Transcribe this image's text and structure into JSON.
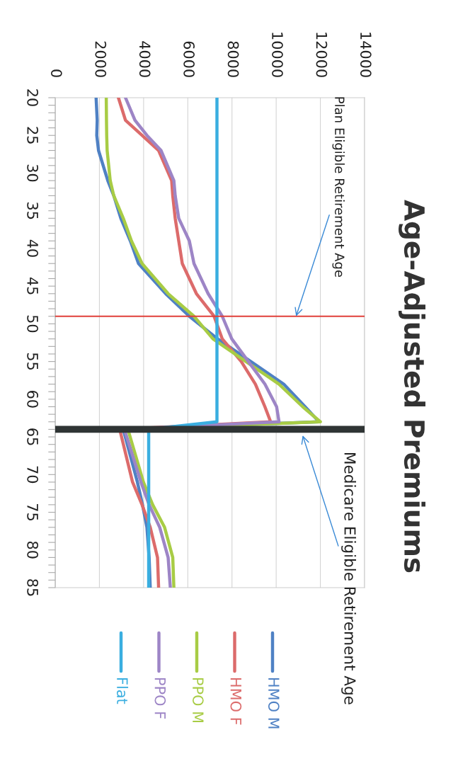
{
  "chart_data": {
    "type": "line",
    "title": "Age-Adjusted Premiums",
    "xlim": [
      0,
      14000
    ],
    "xticks": [
      0,
      2000,
      4000,
      6000,
      8000,
      10000,
      12000,
      14000
    ],
    "ylim": [
      85,
      20
    ],
    "yticks": [
      20,
      {
        "value": 21,
        "label": null
      },
      {
        "value": 22,
        "label": null
      },
      {
        "value": 23,
        "label": null
      },
      {
        "value": 24,
        "label": null
      },
      25,
      {
        "value": 26,
        "label": null
      },
      {
        "value": 27,
        "label": null
      },
      {
        "value": 28,
        "label": null
      },
      {
        "value": 29,
        "label": null
      },
      30,
      {
        "value": 31,
        "label": null
      },
      {
        "value": 32,
        "label": null
      },
      {
        "value": 33,
        "label": null
      },
      {
        "value": 34,
        "label": null
      },
      35,
      {
        "value": 36,
        "label": null
      },
      {
        "value": 37,
        "label": null
      },
      {
        "value": 38,
        "label": null
      },
      {
        "value": 39,
        "label": null
      },
      40,
      {
        "value": 41,
        "label": null
      },
      {
        "value": 42,
        "label": null
      },
      {
        "value": 43,
        "label": null
      },
      {
        "value": 44,
        "label": null
      },
      45,
      {
        "value": 46,
        "label": null
      },
      {
        "value": 47,
        "label": null
      },
      {
        "value": 48,
        "label": null
      },
      {
        "value": 49,
        "label": null
      },
      50,
      {
        "value": 51,
        "label": null
      },
      {
        "value": 52,
        "label": null
      },
      {
        "value": 53,
        "label": null
      },
      {
        "value": 54,
        "label": null
      },
      55,
      {
        "value": 56,
        "label": null
      },
      {
        "value": 57,
        "label": null
      },
      {
        "value": 58,
        "label": null
      },
      {
        "value": 59,
        "label": null
      },
      60,
      {
        "value": 61,
        "label": null
      },
      {
        "value": 62,
        "label": null
      },
      {
        "value": 63,
        "label": null
      },
      {
        "value": 64,
        "label": null
      },
      65,
      {
        "value": 66,
        "label": null
      },
      {
        "value": 67,
        "label": null
      },
      {
        "value": 68,
        "label": null
      },
      {
        "value": 69,
        "label": null
      },
      70,
      {
        "value": 71,
        "label": null
      },
      {
        "value": 72,
        "label": null
      },
      {
        "value": 73,
        "label": null
      },
      {
        "value": 74,
        "label": null
      },
      75,
      {
        "value": 76,
        "label": null
      },
      {
        "value": 77,
        "label": null
      },
      {
        "value": 78,
        "label": null
      },
      {
        "value": 79,
        "label": null
      },
      80,
      {
        "value": 81,
        "label": null
      },
      {
        "value": 82,
        "label": null
      },
      {
        "value": 83,
        "label": null
      },
      {
        "value": 84,
        "label": null
      },
      85
    ],
    "grid": "x",
    "legend": "bottom",
    "line_style": "solid",
    "series": [
      {
        "name": "HMO M",
        "color": "#4f81c4",
        "x": [
          1850,
          1900,
          1880,
          1960,
          2380,
          2650,
          2970,
          3400,
          3770,
          5000,
          6070,
          7350,
          8850,
          10340,
          11310,
          11940,
          3080,
          3720,
          3950,
          4150,
          4250,
          4300
        ],
        "values": [
          20,
          23,
          25,
          27,
          31,
          33,
          36,
          39,
          42,
          46,
          49,
          52,
          55,
          58,
          61,
          63,
          64,
          71,
          74,
          77,
          81,
          85
        ]
      },
      {
        "name": "HMO F",
        "color": "#dc6b6b",
        "x": [
          2860,
          3180,
          3930,
          4680,
          5270,
          5320,
          5430,
          5590,
          5750,
          6390,
          7190,
          7560,
          8420,
          9060,
          9490,
          9750,
          2920,
          3500,
          3930,
          4300,
          4630,
          4680
        ],
        "values": [
          20,
          23,
          25,
          27,
          31,
          33,
          36,
          39,
          42,
          46,
          49,
          52,
          55,
          58,
          61,
          63,
          64,
          71,
          74,
          77,
          81,
          85
        ]
      },
      {
        "name": "PPO M",
        "color": "#a8cc45",
        "x": [
          2310,
          2320,
          2330,
          2350,
          2490,
          2650,
          3080,
          3450,
          3930,
          5110,
          6280,
          7140,
          8630,
          10130,
          11200,
          12000,
          3290,
          3990,
          4410,
          4950,
          5320,
          5370
        ],
        "values": [
          20,
          23,
          25,
          27,
          31,
          33,
          36,
          39,
          42,
          46,
          49,
          52,
          55,
          58,
          61,
          63,
          64,
          71,
          74,
          77,
          81,
          85
        ]
      },
      {
        "name": "PPO F",
        "color": "#9d85c6",
        "x": [
          3180,
          3610,
          4150,
          4790,
          5370,
          5430,
          5590,
          6070,
          6280,
          6920,
          7560,
          7990,
          8740,
          9490,
          10020,
          10130,
          3130,
          3880,
          4250,
          4730,
          5110,
          5210
        ],
        "values": [
          20,
          23,
          25,
          27,
          31,
          33,
          36,
          39,
          42,
          46,
          49,
          52,
          55,
          58,
          61,
          63,
          64,
          71,
          74,
          77,
          81,
          85
        ]
      },
      {
        "name": "Flat",
        "color": "#3aaee0",
        "x": [
          7320,
          7320,
          7320,
          7320,
          7320,
          7320,
          7320,
          7320,
          7320,
          7320,
          7320,
          7320,
          7320,
          7320,
          7320,
          7320,
          4230,
          4230,
          4230,
          4230,
          4230,
          4230
        ],
        "values": [
          20,
          23,
          25,
          27,
          31,
          33,
          36,
          39,
          42,
          46,
          49,
          52,
          55,
          58,
          61,
          63,
          64,
          71,
          74,
          77,
          81,
          85
        ]
      }
    ],
    "ref_lines": [
      {
        "axis": "y",
        "value": 49,
        "color": "#e0403a"
      },
      {
        "axis": "y",
        "value": 64,
        "color": "#2f3434"
      }
    ],
    "annotations": [
      {
        "text": "Plan Eligible Retirement Age",
        "x": 10900,
        "y": 49
      },
      {
        "text": "Medicare Eligible Retirement Age",
        "x": 11200,
        "y": 64.8
      }
    ]
  }
}
